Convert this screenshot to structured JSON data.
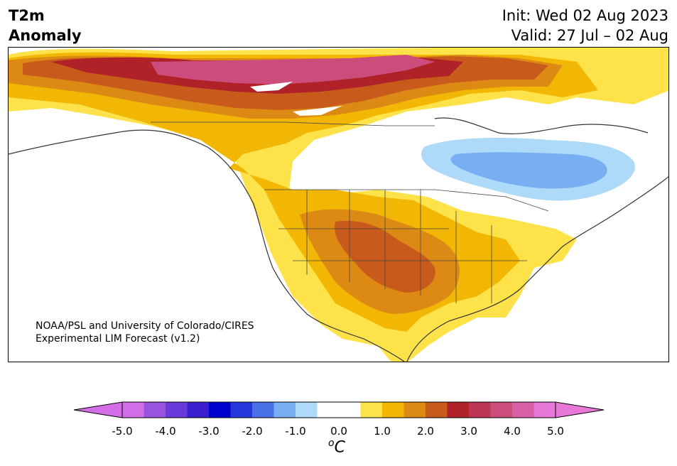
{
  "title": {
    "left_line1": "T2m",
    "left_line2": "Anomaly",
    "init": "Init: Wed 02 Aug 2023",
    "valid": "Valid: 27 Jul – 02 Aug"
  },
  "credit": {
    "line1": "NOAA/PSL and University of Colorado/CIRES",
    "line2": "Experimental LIM Forecast (v1.2)"
  },
  "colorbar": {
    "ticks": [
      "-5.0",
      "-4.0",
      "-3.0",
      "-2.0",
      "-1.0",
      "0.0",
      "1.0",
      "2.0",
      "3.0",
      "4.0",
      "5.0"
    ],
    "colors": [
      "#d36ee8",
      "#9a55e0",
      "#6a3adb",
      "#3920cc",
      "#0000cc",
      "#2438dc",
      "#4a70e6",
      "#78aef2",
      "#acdaf8",
      "#ffffff",
      "#ffffff",
      "#fde24a",
      "#f2b705",
      "#dd8a14",
      "#c85a1c",
      "#b02228",
      "#bd3555",
      "#cc4d7c",
      "#d960a8",
      "#e878d8"
    ],
    "under_color": "#d36ee8",
    "over_color": "#e878d8",
    "unit_base": "C",
    "unit_sup": "o"
  }
}
